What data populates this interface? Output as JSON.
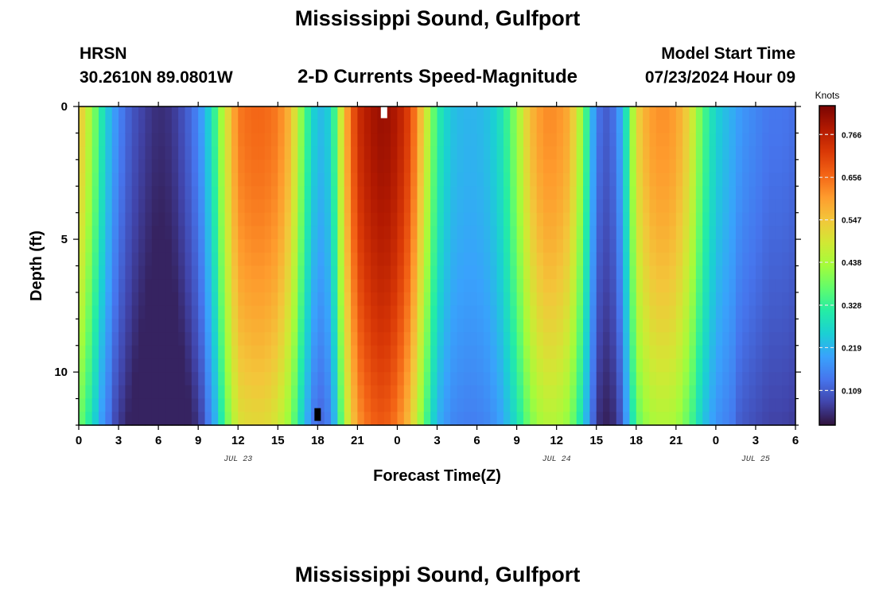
{
  "page": {
    "title_top": "Mississippi Sound, Gulfport",
    "title_bottom": "Mississippi Sound, Gulfport",
    "station": "HRSN",
    "coords": "30.2610N  89.0801W",
    "subtitle": "2-D Currents Speed-Magnitude",
    "model_start_label": "Model Start Time",
    "model_start_value": "07/23/2024 Hour 09"
  },
  "chart_data": {
    "type": "heatmap",
    "title": "2-D Currents Speed-Magnitude",
    "xlabel": "Forecast Time(Z)",
    "ylabel": "Depth (ft)",
    "x_tick_labels": [
      "0",
      "3",
      "6",
      "9",
      "12",
      "15",
      "18",
      "21",
      "0",
      "3",
      "6",
      "9",
      "12",
      "15",
      "18",
      "21",
      "0",
      "3",
      "6"
    ],
    "x_range_hours": [
      0,
      54
    ],
    "date_labels": [
      {
        "hour": 12,
        "text": "JUL 23"
      },
      {
        "hour": 36,
        "text": "JUL 24"
      },
      {
        "hour": 51,
        "text": "JUL 25"
      }
    ],
    "y_ticks": [
      0,
      5,
      10
    ],
    "y_tick_labels": [
      "0",
      "5",
      "10"
    ],
    "ylim": [
      0,
      12
    ],
    "y_inverted": true,
    "colorbar": {
      "title": "Knots",
      "tick_values": [
        0.109,
        0.219,
        0.328,
        0.438,
        0.547,
        0.656,
        0.766
      ],
      "tick_labels": [
        "0.109",
        "0.219",
        "0.328",
        "0.438",
        "0.547",
        "0.656",
        "0.766"
      ],
      "range": [
        0.02,
        0.84
      ],
      "colors": [
        "#30123b",
        "#4145ab",
        "#4675ed",
        "#39a2fc",
        "#1bcfd4",
        "#24eca6",
        "#61fc6c",
        "#a4fc3b",
        "#d1e834",
        "#f3c63a",
        "#fe9b2d",
        "#f36315",
        "#d93806",
        "#b11901",
        "#7a0403"
      ]
    },
    "time_profile": {
      "hours": [
        0,
        1,
        2,
        3,
        4,
        5,
        6,
        7,
        8,
        9,
        10,
        11,
        12,
        13,
        14,
        15,
        16,
        17,
        18,
        19,
        20,
        21,
        22,
        23,
        24,
        25,
        26,
        27,
        28,
        29,
        30,
        31,
        32,
        33,
        34,
        35,
        36,
        37,
        38,
        39,
        40,
        41,
        42,
        43,
        44,
        45,
        46,
        47,
        48,
        49,
        50,
        51,
        52,
        53,
        54
      ],
      "surface_speed_kn": [
        0.56,
        0.42,
        0.26,
        0.16,
        0.1,
        0.07,
        0.05,
        0.06,
        0.1,
        0.16,
        0.28,
        0.48,
        0.64,
        0.66,
        0.66,
        0.64,
        0.56,
        0.36,
        0.22,
        0.26,
        0.56,
        0.74,
        0.79,
        0.81,
        0.78,
        0.7,
        0.52,
        0.32,
        0.24,
        0.22,
        0.22,
        0.24,
        0.3,
        0.42,
        0.56,
        0.62,
        0.62,
        0.58,
        0.4,
        0.14,
        0.1,
        0.22,
        0.52,
        0.6,
        0.62,
        0.6,
        0.52,
        0.36,
        0.26,
        0.22,
        0.18,
        0.16,
        0.14,
        0.14,
        0.13
      ],
      "depth_decay_factor": [
        0.3,
        0.32,
        0.4,
        0.45,
        0.5,
        0.55,
        0.6,
        0.6,
        0.6,
        0.5,
        0.4,
        0.25,
        0.22,
        0.22,
        0.22,
        0.24,
        0.28,
        0.35,
        0.5,
        0.4,
        0.22,
        0.18,
        0.16,
        0.16,
        0.18,
        0.22,
        0.28,
        0.32,
        0.32,
        0.32,
        0.32,
        0.32,
        0.32,
        0.32,
        0.3,
        0.28,
        0.28,
        0.3,
        0.32,
        0.45,
        0.5,
        0.4,
        0.3,
        0.28,
        0.28,
        0.28,
        0.3,
        0.32,
        0.32,
        0.32,
        0.32,
        0.32,
        0.32,
        0.32,
        0.32
      ]
    },
    "markers": [
      {
        "hour": 23,
        "depth_ft": 0.2,
        "color": "#ffffff"
      },
      {
        "hour": 18,
        "depth_ft": 11.6,
        "color": "#000000"
      }
    ]
  }
}
